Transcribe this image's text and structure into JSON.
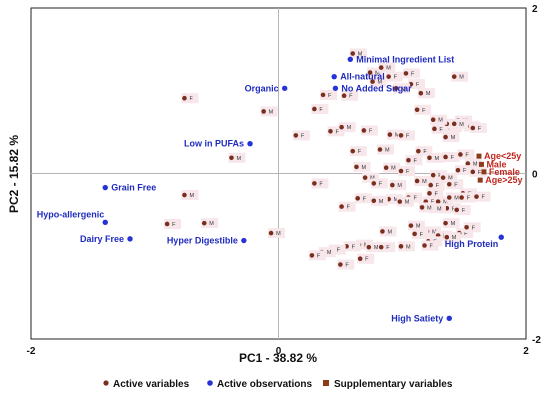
{
  "chart_data": {
    "type": "scatter",
    "xlabel": "PC1 - 38.82 %",
    "ylabel": "PC2 - 15.82 %",
    "xlim": [
      -2,
      2
    ],
    "ylim": [
      -2,
      2
    ],
    "x_ticks": [
      "-2",
      "0",
      "2"
    ],
    "y_ticks": [
      "2",
      "0",
      "-2"
    ],
    "grid": false,
    "legend_position": "bottom",
    "legend": [
      {
        "label": "Active variables",
        "color": "#7a2e1e",
        "marker": "circle"
      },
      {
        "label": "Active observations",
        "color": "#2633d6",
        "marker": "circle"
      },
      {
        "label": "Supplementary variables",
        "color": "#8b3a1a",
        "marker": "square"
      }
    ],
    "active_observations": [
      {
        "label": "Minimal Ingredient List",
        "x": 0.58,
        "y": 1.38
      },
      {
        "label": "All-natural",
        "x": 0.45,
        "y": 1.17
      },
      {
        "label": "No Added Sugar",
        "x": 0.46,
        "y": 1.03
      },
      {
        "label": "Organic",
        "x": 0.05,
        "y": 1.03
      },
      {
        "label": "Low in PUFAs",
        "x": -0.23,
        "y": 0.36
      },
      {
        "label": "Grain Free",
        "x": -1.4,
        "y": -0.17
      },
      {
        "label": "Hypo-allergenic",
        "x": -1.4,
        "y": -0.59
      },
      {
        "label": "Dairy Free",
        "x": -1.2,
        "y": -0.79
      },
      {
        "label": "Hyper Digestible",
        "x": -0.28,
        "y": -0.81
      },
      {
        "label": "High Protein",
        "x": 1.8,
        "y": -0.77
      },
      {
        "label": "High Satiety",
        "x": 1.38,
        "y": -1.75
      }
    ],
    "supplementary_variables": [
      {
        "label": "Age<25y",
        "x": 1.62,
        "y": 0.21
      },
      {
        "label": "Male",
        "x": 1.64,
        "y": 0.11
      },
      {
        "label": "Female",
        "x": 1.66,
        "y": 0.02
      },
      {
        "label": "Age>25y",
        "x": 1.63,
        "y": -0.08
      }
    ],
    "active_variables": [
      {
        "label": "M",
        "x": 0.6,
        "y": 1.45
      },
      {
        "label": "M",
        "x": 0.74,
        "y": 1.22
      },
      {
        "label": "M",
        "x": 0.83,
        "y": 1.28
      },
      {
        "label": "F",
        "x": 1.03,
        "y": 1.21
      },
      {
        "label": "M",
        "x": 1.42,
        "y": 1.17
      },
      {
        "label": "F",
        "x": 0.89,
        "y": 1.17
      },
      {
        "label": "M",
        "x": 0.76,
        "y": 1.11
      },
      {
        "label": "F",
        "x": 1.07,
        "y": 1.08
      },
      {
        "label": "M",
        "x": 0.95,
        "y": 1.03
      },
      {
        "label": "M",
        "x": 1.15,
        "y": 0.97
      },
      {
        "label": "F",
        "x": 0.36,
        "y": 0.95
      },
      {
        "label": "F",
        "x": 0.53,
        "y": 0.94
      },
      {
        "label": "F",
        "x": -0.76,
        "y": 0.91
      },
      {
        "label": "M",
        "x": -0.12,
        "y": 0.75
      },
      {
        "label": "F",
        "x": 0.29,
        "y": 0.78
      },
      {
        "label": "F",
        "x": 1.12,
        "y": 0.77
      },
      {
        "label": "M",
        "x": 1.45,
        "y": 0.64
      },
      {
        "label": "M",
        "x": 1.52,
        "y": 0.57
      },
      {
        "label": "M",
        "x": 1.37,
        "y": 0.56
      },
      {
        "label": "F",
        "x": 1.26,
        "y": 0.54
      },
      {
        "label": "M",
        "x": 1.36,
        "y": 0.6
      },
      {
        "label": "M",
        "x": 1.25,
        "y": 0.65
      },
      {
        "label": "M",
        "x": 1.42,
        "y": 0.6
      },
      {
        "label": "F",
        "x": 0.42,
        "y": 0.51
      },
      {
        "label": "M",
        "x": 0.51,
        "y": 0.56
      },
      {
        "label": "F",
        "x": 0.69,
        "y": 0.52
      },
      {
        "label": "M",
        "x": 0.9,
        "y": 0.47
      },
      {
        "label": "F",
        "x": 0.99,
        "y": 0.46
      },
      {
        "label": "F",
        "x": 1.57,
        "y": 0.55
      },
      {
        "label": "F",
        "x": 0.14,
        "y": 0.46
      },
      {
        "label": "M",
        "x": 1.35,
        "y": 0.44
      },
      {
        "label": "F",
        "x": 1.13,
        "y": 0.27
      },
      {
        "label": "F",
        "x": 0.6,
        "y": 0.27
      },
      {
        "label": "M",
        "x": 0.82,
        "y": 0.29
      },
      {
        "label": "M",
        "x": -0.38,
        "y": 0.19
      },
      {
        "label": "F",
        "x": 1.05,
        "y": 0.16
      },
      {
        "label": "M",
        "x": 1.22,
        "y": 0.19
      },
      {
        "label": "F",
        "x": 1.35,
        "y": 0.2
      },
      {
        "label": "F",
        "x": 1.47,
        "y": 0.23
      },
      {
        "label": "M",
        "x": 1.53,
        "y": 0.12
      },
      {
        "label": "F",
        "x": 1.45,
        "y": 0.04
      },
      {
        "label": "F",
        "x": 1.57,
        "y": 0.02
      },
      {
        "label": "M",
        "x": 0.63,
        "y": 0.08
      },
      {
        "label": "M",
        "x": 0.87,
        "y": 0.07
      },
      {
        "label": "F",
        "x": 0.99,
        "y": 0.03
      },
      {
        "label": "M",
        "x": 0.7,
        "y": -0.05
      },
      {
        "label": "F",
        "x": 1.25,
        "y": -0.02
      },
      {
        "label": "M",
        "x": 1.33,
        "y": -0.05
      },
      {
        "label": "F",
        "x": 0.29,
        "y": -0.12
      },
      {
        "label": "F",
        "x": 0.77,
        "y": -0.12
      },
      {
        "label": "M",
        "x": 0.92,
        "y": -0.14
      },
      {
        "label": "M",
        "x": 1.12,
        "y": -0.09
      },
      {
        "label": "F",
        "x": 1.23,
        "y": -0.14
      },
      {
        "label": "F",
        "x": 1.38,
        "y": -0.13
      },
      {
        "label": "F",
        "x": 1.49,
        "y": -0.24
      },
      {
        "label": "M",
        "x": -0.76,
        "y": -0.26
      },
      {
        "label": "F",
        "x": 1.22,
        "y": -0.24
      },
      {
        "label": "F",
        "x": 1.05,
        "y": -0.29
      },
      {
        "label": "M",
        "x": 0.89,
        "y": -0.31
      },
      {
        "label": "F",
        "x": 1.19,
        "y": -0.34
      },
      {
        "label": "M",
        "x": 1.29,
        "y": -0.34
      },
      {
        "label": "M",
        "x": 1.38,
        "y": -0.29
      },
      {
        "label": "F",
        "x": 1.48,
        "y": -0.29
      },
      {
        "label": "M",
        "x": 0.98,
        "y": -0.34
      },
      {
        "label": "F",
        "x": 1.6,
        "y": -0.28
      },
      {
        "label": "F",
        "x": 0.64,
        "y": -0.3
      },
      {
        "label": "M",
        "x": 0.77,
        "y": -0.33
      },
      {
        "label": "F",
        "x": 0.51,
        "y": -0.4
      },
      {
        "label": "F",
        "x": 1.36,
        "y": -0.42
      },
      {
        "label": "M",
        "x": 1.24,
        "y": -0.42
      },
      {
        "label": "M",
        "x": 1.16,
        "y": -0.41
      },
      {
        "label": "F",
        "x": 1.44,
        "y": -0.44
      },
      {
        "label": "M",
        "x": -0.6,
        "y": -0.6
      },
      {
        "label": "F",
        "x": -0.9,
        "y": -0.61
      },
      {
        "label": "M",
        "x": 1.07,
        "y": -0.63
      },
      {
        "label": "M",
        "x": 0.84,
        "y": -0.7
      },
      {
        "label": "M",
        "x": 1.2,
        "y": -0.7
      },
      {
        "label": "M",
        "x": -0.06,
        "y": -0.72
      },
      {
        "label": "F",
        "x": 1.1,
        "y": -0.73
      },
      {
        "label": "F",
        "x": 1.29,
        "y": -0.75
      },
      {
        "label": "M",
        "x": 1.35,
        "y": -0.6
      },
      {
        "label": "F",
        "x": 1.46,
        "y": -0.72
      },
      {
        "label": "M",
        "x": 1.36,
        "y": -0.77
      },
      {
        "label": "F",
        "x": 1.21,
        "y": -0.82
      },
      {
        "label": "M",
        "x": 0.65,
        "y": -0.86
      },
      {
        "label": "F",
        "x": 0.55,
        "y": -0.88
      },
      {
        "label": "M",
        "x": 0.73,
        "y": -0.89
      },
      {
        "label": "F",
        "x": 0.83,
        "y": -0.89
      },
      {
        "label": "M",
        "x": 0.99,
        "y": -0.88
      },
      {
        "label": "F",
        "x": 1.18,
        "y": -0.87
      },
      {
        "label": "F",
        "x": 0.43,
        "y": -0.92
      },
      {
        "label": "M",
        "x": 0.35,
        "y": -0.95
      },
      {
        "label": "F",
        "x": 0.66,
        "y": -1.03
      },
      {
        "label": "F",
        "x": 0.27,
        "y": -0.99
      },
      {
        "label": "F",
        "x": 0.5,
        "y": -1.1
      },
      {
        "label": "F",
        "x": 1.52,
        "y": -0.65
      }
    ]
  }
}
